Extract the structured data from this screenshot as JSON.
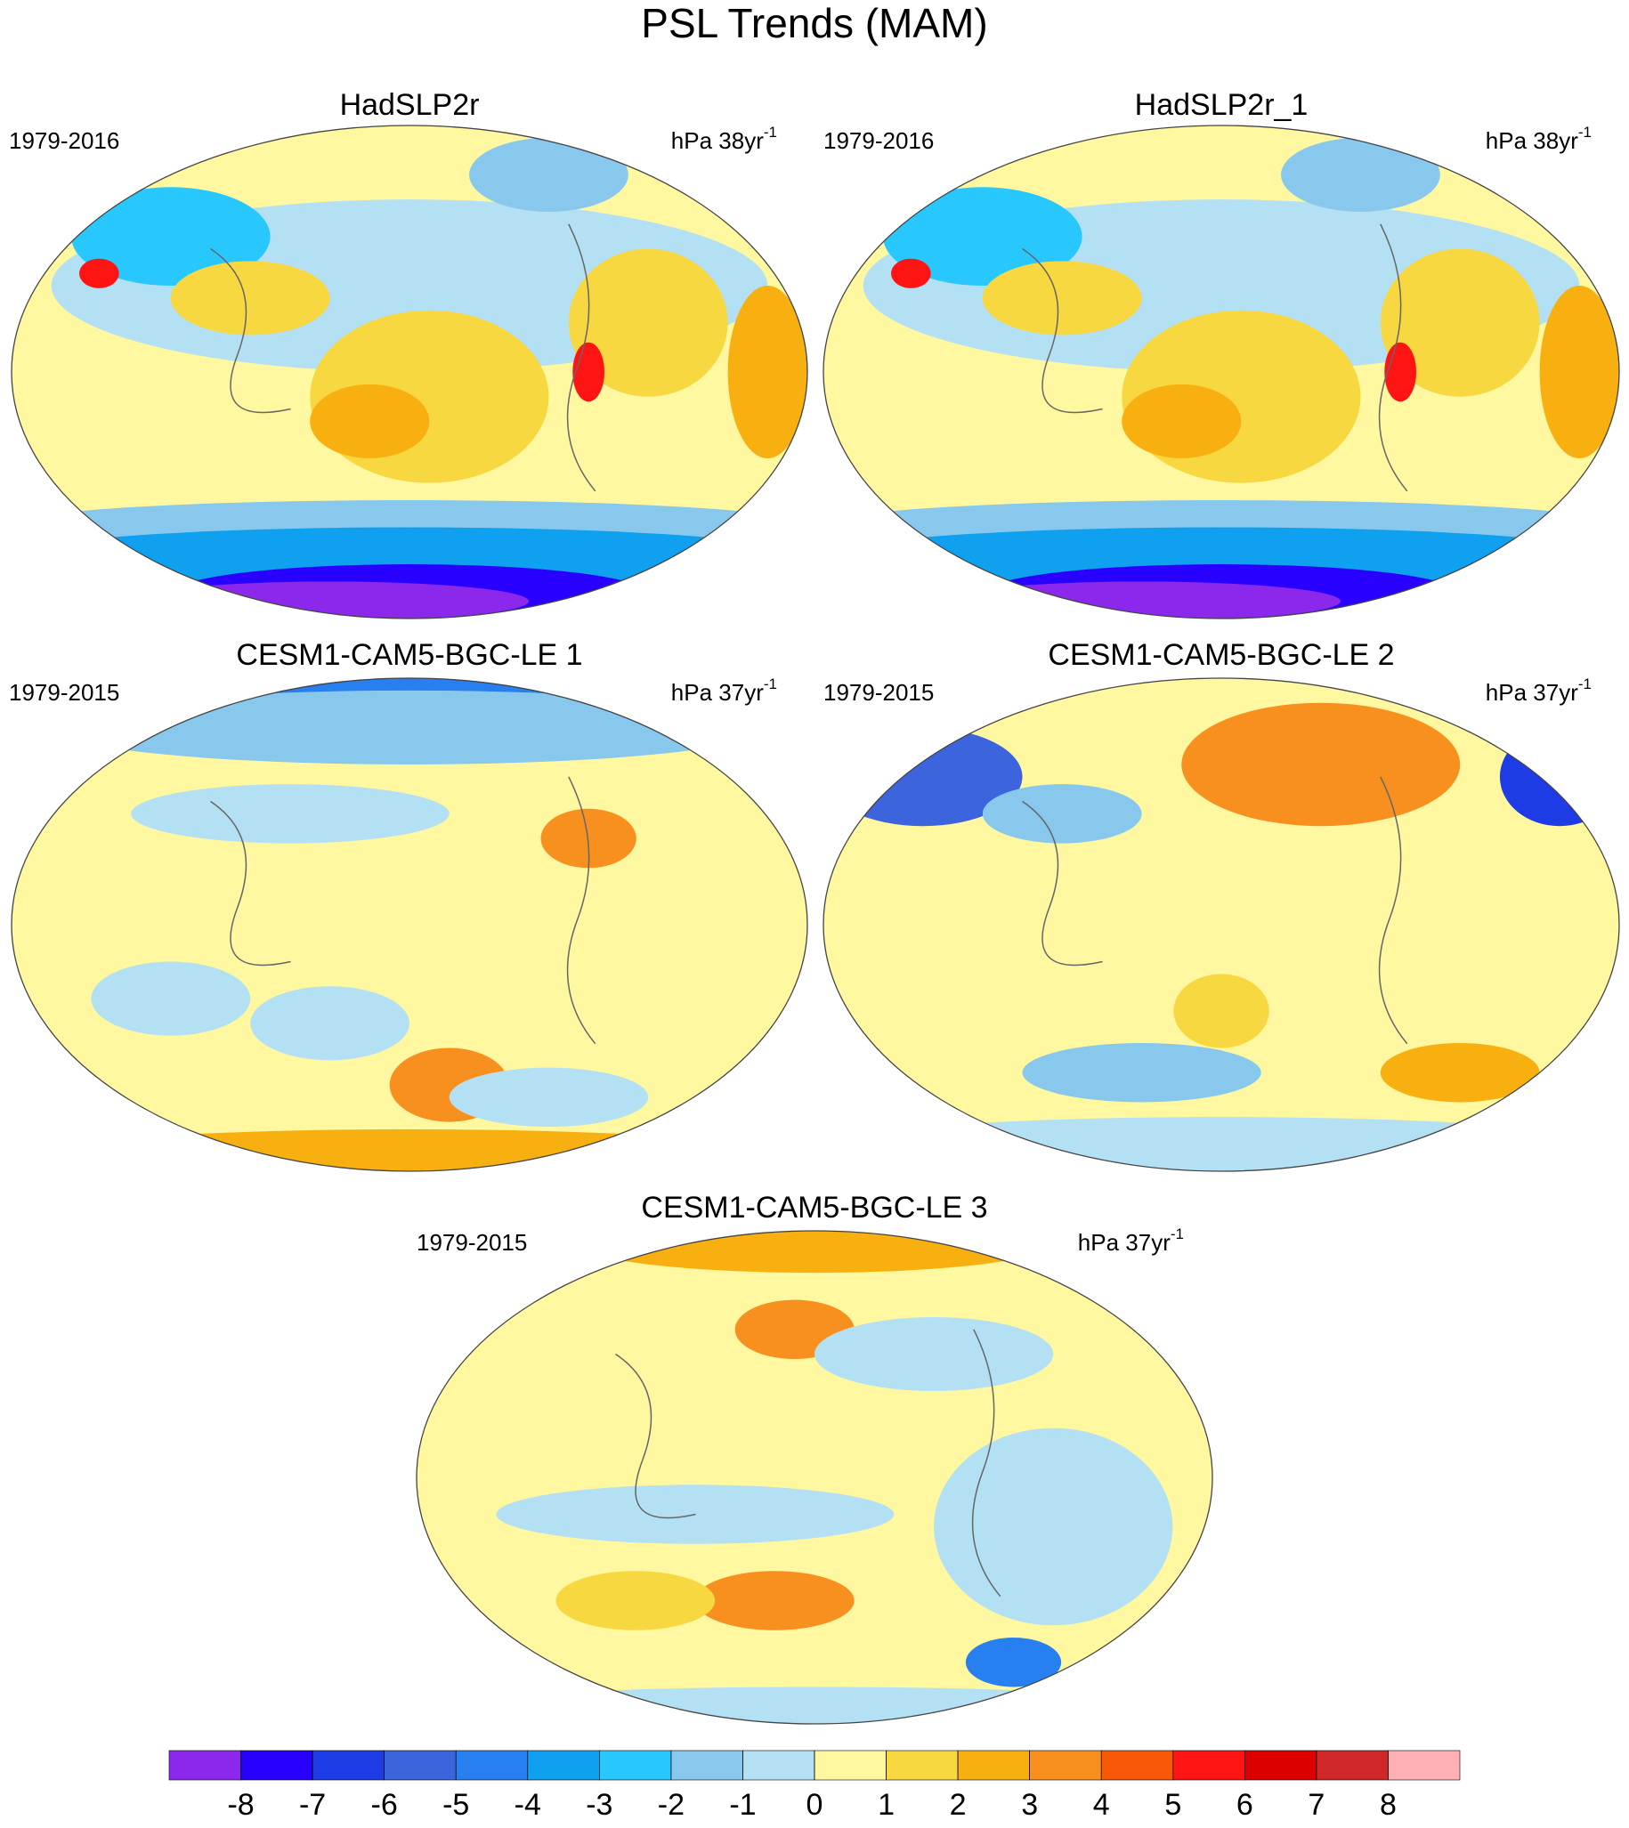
{
  "chart_data": {
    "type": "map",
    "title": "PSL Trends (MAM)",
    "panels": [
      {
        "title": "HadSLP2r",
        "period": "1979-2016",
        "units": "hPa 38yr",
        "units_exponent": "-1"
      },
      {
        "title": "HadSLP2r_1",
        "period": "1979-2016",
        "units": "hPa 38yr",
        "units_exponent": "-1"
      },
      {
        "title": "CESM1-CAM5-BGC-LE 1",
        "period": "1979-2015",
        "units": "hPa 37yr",
        "units_exponent": "-1"
      },
      {
        "title": "CESM1-CAM5-BGC-LE 2",
        "period": "1979-2015",
        "units": "hPa 37yr",
        "units_exponent": "-1"
      },
      {
        "title": "CESM1-CAM5-BGC-LE 3",
        "period": "1979-2015",
        "units": "hPa 37yr",
        "units_exponent": "-1"
      }
    ],
    "colorbar": {
      "ticks": [
        -8,
        -7,
        -6,
        -5,
        -4,
        -3,
        -2,
        -1,
        0,
        1,
        2,
        3,
        4,
        5,
        6,
        7,
        8
      ],
      "colors": [
        "#8c28ec",
        "#2800ff",
        "#1e3ce6",
        "#3c64dc",
        "#2880f0",
        "#10a0f0",
        "#28c8ff",
        "#88c8ec",
        "#b4e0f4",
        "#fff8a0",
        "#f8d840",
        "#f8b010",
        "#f89020",
        "#f85808",
        "#ff1414",
        "#dc0000",
        "#d02828",
        "#ffb0b4"
      ]
    }
  }
}
